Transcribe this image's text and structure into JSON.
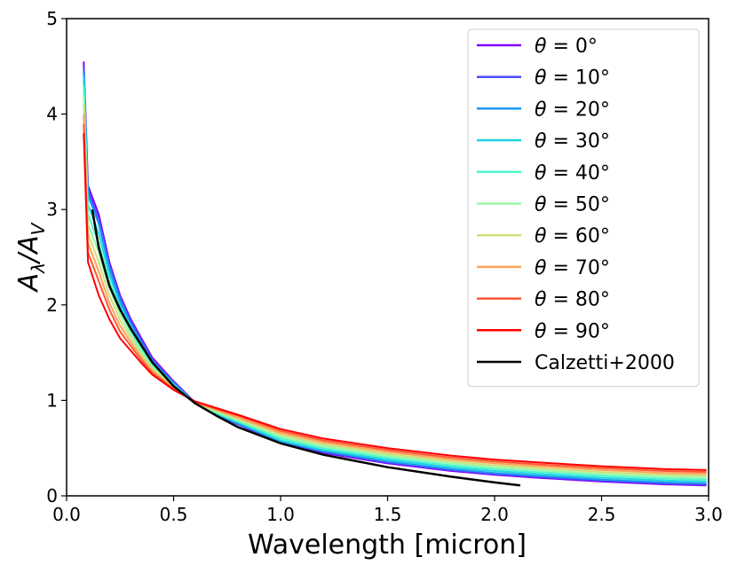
{
  "chart_data": {
    "type": "line",
    "xlabel": "Wavelength [micron]",
    "ylabel": "A",
    "ylabel_sub1": "λ",
    "ylabel_mid": "/A",
    "ylabel_sub2": "V",
    "xlim": [
      0.0,
      3.0
    ],
    "ylim": [
      0,
      5
    ],
    "xticks": [
      "0.0",
      "0.5",
      "1.0",
      "1.5",
      "2.0",
      "2.5",
      "3.0"
    ],
    "yticks": [
      "0",
      "1",
      "2",
      "3",
      "4",
      "5"
    ],
    "legend_position": "top-right",
    "grid": false,
    "theta_prefix": "θ",
    "theta_eq": " = ",
    "theta_suffix": "°",
    "x": [
      0.08,
      0.1,
      0.15,
      0.2,
      0.25,
      0.3,
      0.35,
      0.4,
      0.5,
      0.6,
      0.7,
      0.8,
      1.0,
      1.2,
      1.5,
      1.8,
      2.0,
      2.2,
      2.5,
      2.8,
      2.99
    ],
    "series": [
      {
        "name": "0",
        "color": "#7f00ff",
        "values": [
          4.55,
          3.25,
          2.95,
          2.45,
          2.1,
          1.85,
          1.65,
          1.45,
          1.2,
          0.98,
          0.85,
          0.75,
          0.55,
          0.45,
          0.34,
          0.26,
          0.22,
          0.19,
          0.15,
          0.12,
          0.11
        ]
      },
      {
        "name": "10",
        "color": "#4e4dfc",
        "values": [
          4.5,
          3.2,
          2.9,
          2.42,
          2.08,
          1.83,
          1.63,
          1.43,
          1.19,
          0.98,
          0.85,
          0.75,
          0.56,
          0.46,
          0.35,
          0.27,
          0.23,
          0.2,
          0.16,
          0.13,
          0.12
        ]
      },
      {
        "name": "20",
        "color": "#1996f3",
        "values": [
          4.45,
          3.15,
          2.85,
          2.38,
          2.04,
          1.8,
          1.6,
          1.41,
          1.18,
          0.97,
          0.85,
          0.76,
          0.57,
          0.47,
          0.36,
          0.28,
          0.24,
          0.21,
          0.17,
          0.14,
          0.13
        ]
      },
      {
        "name": "30",
        "color": "#1cd6e0",
        "values": [
          4.4,
          3.05,
          2.75,
          2.32,
          2.0,
          1.77,
          1.57,
          1.39,
          1.17,
          0.97,
          0.86,
          0.77,
          0.58,
          0.48,
          0.38,
          0.3,
          0.26,
          0.23,
          0.19,
          0.16,
          0.15
        ]
      },
      {
        "name": "40",
        "color": "#4cf8c9",
        "values": [
          4.3,
          2.95,
          2.65,
          2.25,
          1.95,
          1.73,
          1.54,
          1.37,
          1.16,
          0.97,
          0.87,
          0.78,
          0.6,
          0.5,
          0.4,
          0.32,
          0.28,
          0.25,
          0.21,
          0.18,
          0.17
        ]
      },
      {
        "name": "50",
        "color": "#99f7a4",
        "values": [
          4.2,
          2.85,
          2.55,
          2.18,
          1.9,
          1.69,
          1.51,
          1.35,
          1.15,
          0.97,
          0.88,
          0.79,
          0.62,
          0.52,
          0.42,
          0.34,
          0.3,
          0.27,
          0.23,
          0.2,
          0.19
        ]
      },
      {
        "name": "60",
        "color": "#cde07c",
        "values": [
          4.1,
          2.75,
          2.45,
          2.1,
          1.84,
          1.65,
          1.48,
          1.33,
          1.14,
          0.98,
          0.89,
          0.81,
          0.64,
          0.54,
          0.44,
          0.36,
          0.32,
          0.29,
          0.25,
          0.22,
          0.21
        ]
      },
      {
        "name": "70",
        "color": "#ffa256",
        "values": [
          4.0,
          2.65,
          2.35,
          2.02,
          1.78,
          1.61,
          1.45,
          1.31,
          1.13,
          0.98,
          0.9,
          0.82,
          0.66,
          0.56,
          0.46,
          0.38,
          0.34,
          0.31,
          0.27,
          0.24,
          0.23
        ]
      },
      {
        "name": "80",
        "color": "#ff5733",
        "values": [
          3.9,
          2.55,
          2.25,
          1.95,
          1.72,
          1.57,
          1.42,
          1.29,
          1.12,
          0.99,
          0.91,
          0.84,
          0.68,
          0.58,
          0.48,
          0.4,
          0.36,
          0.33,
          0.29,
          0.26,
          0.25
        ]
      },
      {
        "name": "90",
        "color": "#ff0000",
        "values": [
          3.8,
          2.45,
          2.1,
          1.85,
          1.65,
          1.52,
          1.39,
          1.27,
          1.11,
          0.99,
          0.92,
          0.85,
          0.7,
          0.6,
          0.5,
          0.42,
          0.38,
          0.35,
          0.31,
          0.28,
          0.27
        ]
      }
    ],
    "calzetti": {
      "name": "Calzetti+2000",
      "color": "#000000",
      "x": [
        0.12,
        0.15,
        0.2,
        0.22,
        0.25,
        0.3,
        0.4,
        0.5,
        0.6,
        0.7,
        0.8,
        1.0,
        1.2,
        1.5,
        1.8,
        2.0,
        2.12
      ],
      "values": [
        3.0,
        2.6,
        2.2,
        2.1,
        1.95,
        1.75,
        1.4,
        1.15,
        0.97,
        0.84,
        0.72,
        0.55,
        0.43,
        0.3,
        0.2,
        0.14,
        0.11
      ]
    }
  }
}
